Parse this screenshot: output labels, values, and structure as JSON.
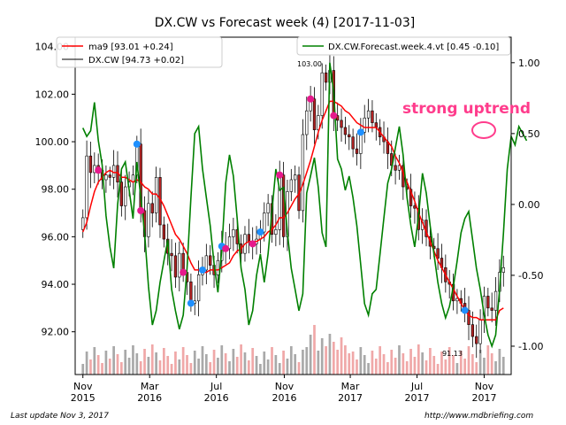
{
  "chart_data": {
    "type": "candlestick",
    "title": "DX.CW vs Forecast week (4)  [2017-11-03]",
    "ylim_left": [
      90.2,
      104.4
    ],
    "ylim_right": [
      -1.2,
      1.18
    ],
    "left_ticks": [
      "104.00",
      "102.00",
      "100.00",
      "98.00",
      "96.00",
      "94.00",
      "92.00"
    ],
    "left_tick_values": [
      104,
      102,
      100,
      98,
      96,
      94,
      92
    ],
    "right_ticks": [
      "1.00",
      "0.50",
      "0.00",
      "-0.50",
      "-1.00"
    ],
    "right_tick_values": [
      1.0,
      0.5,
      0.0,
      -0.5,
      -1.0
    ],
    "x_ticks": [
      {
        "line1": "Nov",
        "line2": "2015",
        "pos": 0
      },
      {
        "line1": "Mar",
        "line2": "2016",
        "pos": 17.3
      },
      {
        "line1": "Jul",
        "line2": "2016",
        "pos": 34.6
      },
      {
        "line1": "Nov",
        "line2": "2016",
        "pos": 52.2
      },
      {
        "line1": "Mar",
        "line2": "2017",
        "pos": 69.3
      },
      {
        "line1": "Jul",
        "line2": "2017",
        "pos": 86.6
      },
      {
        "line1": "Nov",
        "line2": "2017",
        "pos": 104
      }
    ],
    "x_range": [
      -2,
      111
    ],
    "closes": [
      96.8,
      99.4,
      98.7,
      99.0,
      98.8,
      98.4,
      98.6,
      98.5,
      99.0,
      98.3,
      97.3,
      98.1,
      98.3,
      98.6,
      99.9,
      97.1,
      96.0,
      97.4,
      97.0,
      98.5,
      96.5,
      95.9,
      95.3,
      95.2,
      94.3,
      95.3,
      94.5,
      94.1,
      93.2,
      93.3,
      94.4,
      94.6,
      95.2,
      94.8,
      94.4,
      95.0,
      95.6,
      95.5,
      96.0,
      96.3,
      95.7,
      95.3,
      96.1,
      95.8,
      95.7,
      95.9,
      96.2,
      97.0,
      97.4,
      96.1,
      96.3,
      98.6,
      96.0,
      97.9,
      98.4,
      98.6,
      97.1,
      100.3,
      101.3,
      101.8,
      100.5,
      101.1,
      102.9,
      102.5,
      103.0,
      101.1,
      100.9,
      100.6,
      100.3,
      100.2,
      99.7,
      99.5,
      100.4,
      101.0,
      101.3,
      100.8,
      100.6,
      100.2,
      100.0,
      99.5,
      99.0,
      98.8,
      99.0,
      98.1,
      98.0,
      97.3,
      97.2,
      96.3,
      96.7,
      96.0,
      95.6,
      95.5,
      95.1,
      94.7,
      94.1,
      94.0,
      93.3,
      93.4,
      93.2,
      92.9,
      92.3,
      91.8,
      91.5,
      92.5,
      93.5,
      93.0,
      92.9,
      93.7,
      94.5,
      94.7
    ],
    "ma_values": [
      96.2,
      96.6,
      97.3,
      97.9,
      98.3,
      98.5,
      98.7,
      98.8,
      98.7,
      98.7,
      98.5,
      98.5,
      98.4,
      98.3,
      98.4,
      98.3,
      98.1,
      98.0,
      97.8,
      97.8,
      97.6,
      97.3,
      96.9,
      96.5,
      96.1,
      95.9,
      95.6,
      95.3,
      94.9,
      94.6,
      94.6,
      94.5,
      94.5,
      94.6,
      94.6,
      94.6,
      94.7,
      94.8,
      94.9,
      95.2,
      95.4,
      95.5,
      95.7,
      95.8,
      95.8,
      95.8,
      95.9,
      96.0,
      96.2,
      96.3,
      96.5,
      96.8,
      96.8,
      97.0,
      97.3,
      97.6,
      97.8,
      98.2,
      98.7,
      99.2,
      99.8,
      100.4,
      100.9,
      101.3,
      101.7,
      101.7,
      101.6,
      101.5,
      101.3,
      101.2,
      101.0,
      100.8,
      100.7,
      100.6,
      100.6,
      100.6,
      100.6,
      100.4,
      100.2,
      100.0,
      99.8,
      99.4,
      99.1,
      98.7,
      98.3,
      97.9,
      97.5,
      97.0,
      96.6,
      96.2,
      95.8,
      95.4,
      95.0,
      94.7,
      94.4,
      94.1,
      93.8,
      93.5,
      93.2,
      92.9,
      92.7,
      92.6,
      92.6,
      92.5,
      92.5,
      92.5,
      92.5,
      92.5,
      92.9,
      93.0
    ],
    "forecast_values": [
      0.54,
      0.48,
      0.52,
      0.72,
      0.45,
      0.28,
      -0.08,
      -0.3,
      -0.45,
      0.0,
      0.25,
      0.3,
      0.1,
      -0.1,
      0.3,
      0.05,
      -0.2,
      -0.58,
      -0.85,
      -0.75,
      -0.55,
      -0.4,
      -0.25,
      -0.6,
      -0.75,
      -0.88,
      -0.78,
      -0.45,
      0.05,
      0.5,
      0.55,
      0.25,
      0.05,
      -0.15,
      -0.42,
      -0.62,
      -0.32,
      0.15,
      0.35,
      0.2,
      -0.1,
      -0.45,
      -0.6,
      -0.85,
      -0.75,
      -0.5,
      -0.35,
      -0.55,
      -0.35,
      -0.05,
      0.25,
      0.1,
      0.12,
      -0.2,
      -0.45,
      -0.6,
      -0.75,
      -0.63,
      0.08,
      0.2,
      0.33,
      0.12,
      -0.2,
      -0.3,
      1.0,
      0.8,
      0.32,
      0.25,
      0.1,
      0.2,
      0.05,
      -0.15,
      -0.42,
      -0.7,
      -0.78,
      -0.63,
      -0.6,
      -0.35,
      -0.1,
      0.15,
      0.25,
      0.4,
      0.55,
      0.35,
      0.05,
      -0.15,
      -0.3,
      -0.08,
      0.22,
      0.08,
      -0.15,
      -0.35,
      -0.55,
      -0.7,
      -0.8,
      -0.72,
      -0.58,
      -0.4,
      -0.2,
      -0.1,
      -0.05,
      -0.25,
      -0.45,
      -0.6,
      -0.78,
      -0.92,
      -1.0,
      -0.92,
      -0.6,
      -0.2,
      0.25,
      0.48,
      0.42,
      0.55,
      0.5,
      0.45
    ],
    "forecast_label": "DX.CW.Forecast.week.4.vt [0.45 -0.10]",
    "ma_label": "ma9 [93.01 +0.24]",
    "price_label": "DX.CW [94.73 +0.02]",
    "high_annotation": "103.00",
    "low_annotation": "91.13",
    "callout": "strong uptrend",
    "blue_markers": [
      14,
      28,
      31,
      36,
      46,
      72,
      99
    ],
    "magenta_markers": [
      4,
      15,
      26,
      37,
      44,
      51,
      59,
      65
    ],
    "colors": {
      "up": "#ffffff",
      "down": "#b22222",
      "wick": "#000000",
      "ma": "#ff0000",
      "forecast": "#008000",
      "vol_red": "#f0a8a8",
      "vol_grey": "#a9a9a9",
      "blue": "#1e90ff",
      "magenta": "#e6198c",
      "callout": "#ff3c8c"
    }
  },
  "footer": {
    "left": "Last update Nov  3, 2017",
    "right": "http://www.mdbriefing.com"
  }
}
